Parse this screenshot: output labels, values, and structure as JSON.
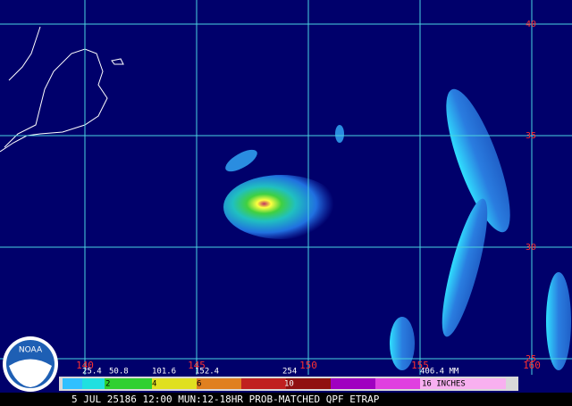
{
  "map": {
    "lat_labels": [
      "40",
      "35",
      "30",
      "25"
    ],
    "lon_labels": [
      "140",
      "145",
      "150",
      "155",
      "160"
    ],
    "logo": "NOAA",
    "colorbar": {
      "mm_labels": [
        "25.4",
        "50.8",
        "101.6",
        "152.4",
        "254",
        "406.4 MM"
      ],
      "inch_labels": [
        "2",
        "4",
        "6",
        "10",
        "16 INCHES"
      ]
    },
    "footer": "5 JUL 25186 12:00 MUN:12-18HR PROB-MATCHED QPF ETRAP"
  }
}
